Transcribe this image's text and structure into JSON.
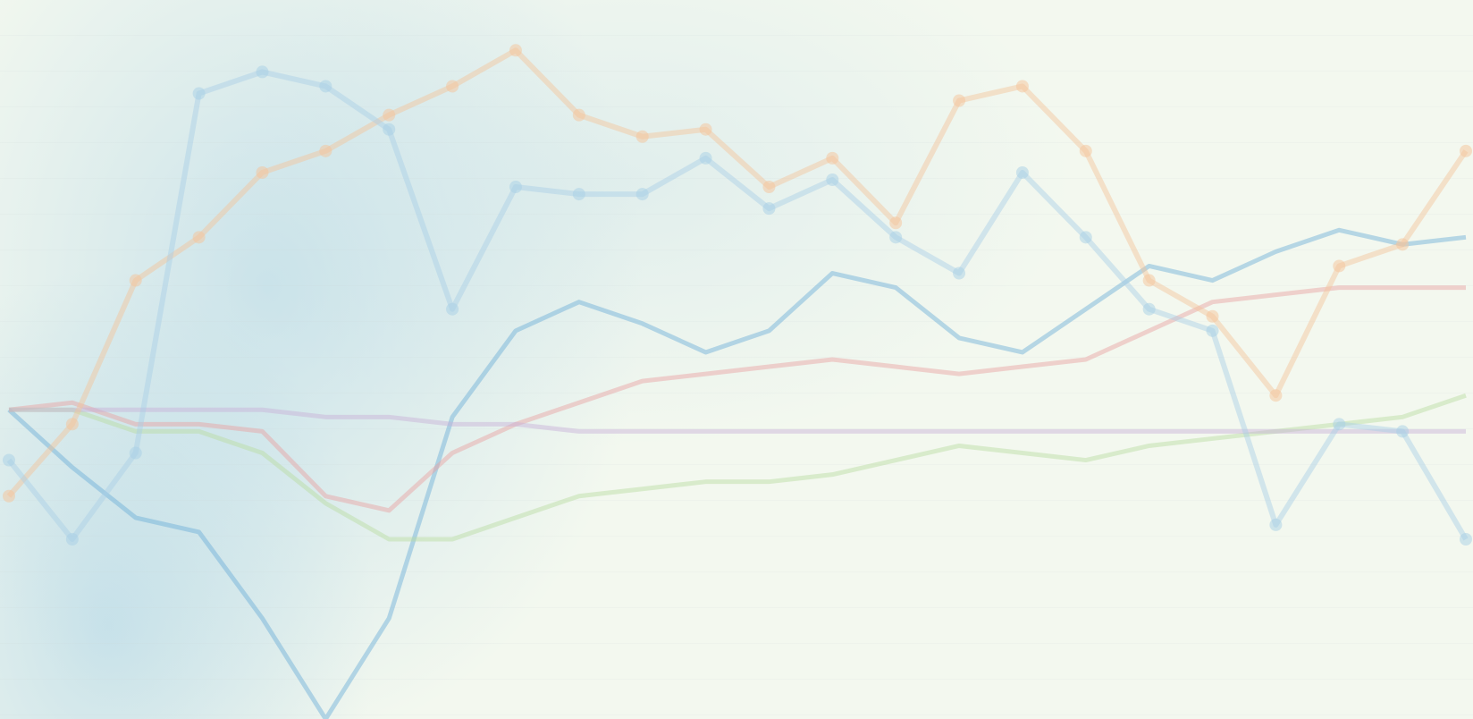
{
  "chart_data": {
    "type": "line",
    "categories": [
      null,
      null,
      null,
      null,
      null,
      null,
      null,
      null,
      null,
      null,
      null,
      null,
      null,
      null,
      null,
      null,
      null,
      null,
      null,
      null,
      null,
      null,
      null,
      null
    ],
    "ylim": [
      0,
      100
    ],
    "series": [
      {
        "color": "#6aaed6",
        "marker": false,
        "values": [
          43,
          35,
          28,
          26,
          14,
          0,
          14,
          42,
          54,
          58,
          55,
          51,
          54,
          62,
          60,
          53,
          51,
          57,
          63,
          61,
          65,
          68,
          66,
          67
        ]
      },
      {
        "color": "#e8a0a0",
        "marker": false,
        "values": [
          43,
          44,
          41,
          41,
          40,
          31,
          29,
          37,
          41,
          44,
          47,
          48,
          49,
          50,
          49,
          48,
          49,
          50,
          54,
          58,
          59,
          60,
          60,
          60
        ]
      },
      {
        "color": "#b8dca0",
        "marker": false,
        "values": [
          43,
          43,
          40,
          40,
          37,
          30,
          25,
          25,
          28,
          31,
          32,
          33,
          33,
          34,
          36,
          38,
          37,
          36,
          38,
          39,
          40,
          41,
          42,
          45
        ]
      },
      {
        "color": "#c8b0d8",
        "marker": false,
        "values": [
          43,
          43,
          43,
          43,
          43,
          42,
          42,
          41,
          41,
          40,
          40,
          40,
          40,
          40,
          40,
          40,
          40,
          40,
          40,
          40,
          40,
          40,
          40,
          40
        ]
      },
      {
        "color": "#f5c49a",
        "marker": true,
        "values": [
          31,
          41,
          61,
          67,
          76,
          79,
          84,
          88,
          93,
          84,
          81,
          82,
          74,
          78,
          69,
          86,
          88,
          79,
          61,
          56,
          45,
          63,
          66,
          79
        ]
      },
      {
        "color": "#a8cfe6",
        "marker": true,
        "values": [
          36,
          25,
          37,
          87,
          90,
          88,
          82,
          57,
          74,
          73,
          73,
          78,
          71,
          75,
          67,
          62,
          76,
          67,
          57,
          54,
          27,
          41,
          40,
          25
        ]
      }
    ]
  }
}
